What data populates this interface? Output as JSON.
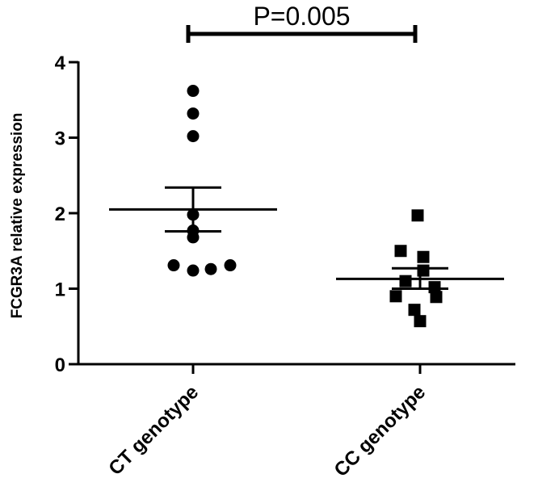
{
  "chart_data": {
    "type": "scatter",
    "title": "",
    "xlabel": "",
    "ylabel": "FCGR3A relative expression",
    "ylim": [
      0,
      4
    ],
    "yticks": [
      0,
      1,
      2,
      3,
      4
    ],
    "grid": false,
    "categories": [
      "CT genotype",
      "CC genotype"
    ],
    "series": [
      {
        "category": "CT genotype",
        "marker": "circle",
        "color": "#000000",
        "values": [
          3.62,
          3.32,
          3.02,
          1.98,
          1.77,
          1.68,
          1.31,
          1.24,
          1.26,
          1.31
        ],
        "mean": 2.05,
        "sem_upper": 2.34,
        "sem_lower": 1.76
      },
      {
        "category": "CC genotype",
        "marker": "square",
        "color": "#000000",
        "values": [
          1.97,
          1.5,
          1.42,
          1.24,
          1.1,
          1.02,
          0.9,
          0.89,
          0.72,
          0.57
        ],
        "mean": 1.13,
        "sem_upper": 1.27,
        "sem_lower": 1.0
      }
    ],
    "annotation": {
      "text": "P=0.005",
      "from": "CT genotype",
      "to": "CC genotype"
    }
  }
}
